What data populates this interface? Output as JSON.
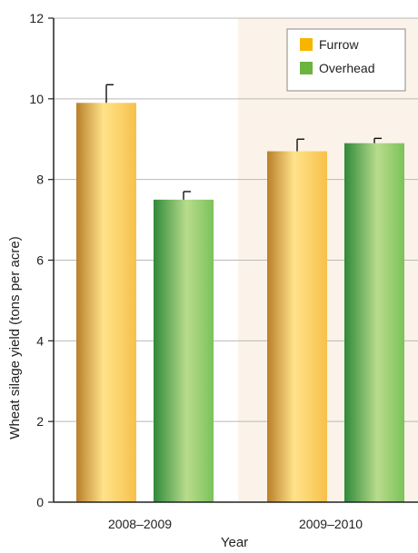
{
  "chart_data": {
    "type": "bar",
    "title": "",
    "xlabel": "Year",
    "ylabel": "Wheat silage yield (tons per acre)",
    "categories": [
      "2008–2009",
      "2009–2010"
    ],
    "series": [
      {
        "name": "Furrow",
        "values": [
          9.9,
          8.7
        ],
        "errors": [
          0.45,
          0.3
        ]
      },
      {
        "name": "Overhead",
        "values": [
          7.5,
          8.9
        ],
        "errors": [
          0.2,
          0.12
        ]
      }
    ],
    "ylim": [
      0,
      12
    ],
    "yticks": [
      "0",
      "2",
      "4",
      "6",
      "8",
      "10",
      "12"
    ],
    "grid": true,
    "legend_position": "top-right",
    "colors": {
      "furrow_light": "#ffe38a",
      "furrow_mid": "#f7c04a",
      "furrow_dark": "#b97f2a",
      "overhead_light": "#b8dc8c",
      "overhead_mid": "#7cc25a",
      "overhead_dark": "#2f8a3a",
      "furrow_swatch": "#f7b500",
      "overhead_swatch": "#6cb33f",
      "panel_background": "#fbf3e9"
    }
  }
}
